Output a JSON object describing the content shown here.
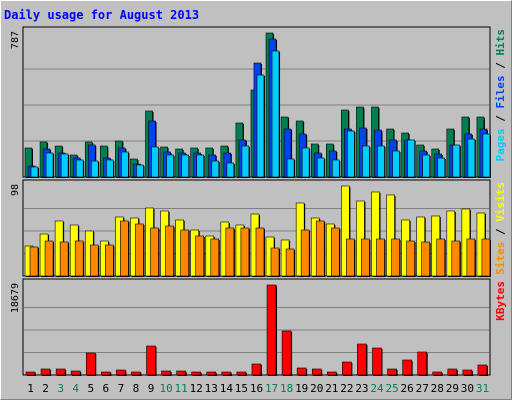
{
  "chart_data": {
    "type": "bar",
    "title": "Daily usage for August 2013",
    "days": [
      "1",
      "2",
      "3",
      "4",
      "5",
      "6",
      "7",
      "8",
      "9",
      "10",
      "11",
      "12",
      "13",
      "14",
      "15",
      "16",
      "17",
      "18",
      "19",
      "20",
      "21",
      "22",
      "23",
      "24",
      "25",
      "26",
      "27",
      "28",
      "29",
      "30",
      "31"
    ],
    "weekend_days": [
      "3",
      "4",
      "10",
      "11",
      "17",
      "18",
      "24",
      "25",
      "31"
    ],
    "panels": [
      {
        "id": "hits-files-pages",
        "max_label": "787",
        "ymax": 787,
        "legend": [
          {
            "text": "Pages",
            "color": "#00ccff"
          },
          {
            "text": " / ",
            "color": "#000000"
          },
          {
            "text": "Files",
            "color": "#0044ee"
          },
          {
            "text": " / ",
            "color": "#000000"
          },
          {
            "text": "Hits",
            "color": "#008050"
          }
        ],
        "series": [
          {
            "name": "Hits",
            "color": "#008050",
            "values": [
              157,
              189,
              170,
              118,
              189,
              170,
              196,
              98,
              361,
              164,
              151,
              157,
              157,
              170,
              295,
              478,
              787,
              328,
              308,
              183,
              183,
              367,
              380,
              380,
              262,
              243,
              177,
              151,
              262,
              328,
              328
            ]
          },
          {
            "name": "Files",
            "color": "#0044ee",
            "values": [
              59,
              151,
              131,
              105,
              177,
              105,
              157,
              72,
              308,
              137,
              131,
              131,
              118,
              131,
              203,
              623,
              754,
              262,
              236,
              131,
              144,
              262,
              269,
              256,
              203,
              203,
              144,
              124,
              177,
              236,
              262
            ]
          },
          {
            "name": "Pages",
            "color": "#00ccff",
            "values": [
              52,
              131,
              124,
              92,
              85,
              92,
              137,
              66,
              164,
              118,
              118,
              118,
              85,
              79,
              170,
              557,
              689,
              98,
              157,
              105,
              92,
              249,
              170,
              170,
              144,
              203,
              118,
              105,
              177,
              210,
              236
            ]
          }
        ]
      },
      {
        "id": "visits-sites",
        "max_label": "98",
        "ymax": 98,
        "legend": [
          {
            "text": "Sites",
            "color": "#ff8800"
          },
          {
            "text": " / ",
            "color": "#000000"
          },
          {
            "text": "Visits",
            "color": "#ffff00"
          }
        ],
        "series": [
          {
            "name": "Visits",
            "color": "#ffff00",
            "values": [
              33,
              46,
              60,
              55,
              49,
              38,
              64,
              63,
              74,
              71,
              61,
              50,
              44,
              59,
              56,
              67,
              43,
              39,
              80,
              63,
              57,
              98,
              82,
              91,
              88,
              61,
              64,
              65,
              71,
              73,
              69
            ]
          },
          {
            "name": "Sites",
            "color": "#ff8800",
            "values": [
              32,
              38,
              37,
              38,
              34,
              34,
              60,
              57,
              52,
              54,
              50,
              44,
              40,
              52,
              52,
              52,
              30,
              29,
              50,
              60,
              52,
              40,
              40,
              40,
              40,
              38,
              37,
              40,
              38,
              40,
              40
            ]
          }
        ]
      },
      {
        "id": "kbytes",
        "max_label": "18679",
        "ymax": 18679,
        "legend": [
          {
            "text": "KBytes",
            "color": "#ff0000"
          }
        ],
        "series": [
          {
            "name": "KBytes",
            "color": "#ff0000",
            "values": [
              600,
              1200,
              1200,
              900,
              4500,
              600,
              1000,
              600,
              6100,
              900,
              900,
              700,
              600,
              600,
              700,
              2200,
              18679,
              9100,
              1500,
              1200,
              700,
              2600,
              6500,
              5700,
              1200,
              3100,
              4700,
              600,
              1200,
              1000,
              2100
            ]
          }
        ]
      }
    ],
    "colors": {
      "background": "#c0c0c0",
      "border": "#000000",
      "title": "#0000ff",
      "gridline": "#808080",
      "weekday_label": "#000000",
      "weekend_label": "#008050"
    }
  }
}
